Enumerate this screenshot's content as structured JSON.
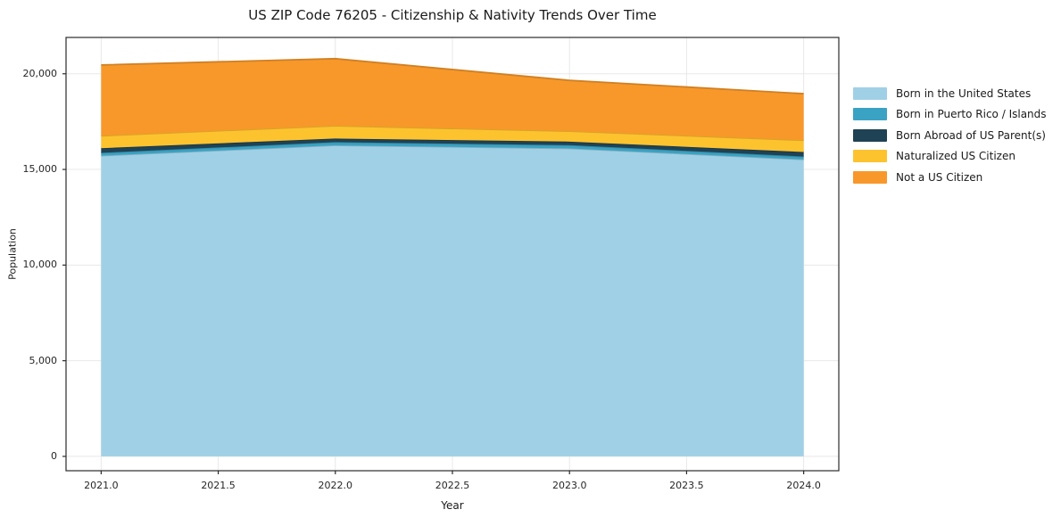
{
  "chart_data": {
    "type": "area",
    "stacked": true,
    "title": "US ZIP Code 76205 - Citizenship & Nativity Trends Over Time",
    "xlabel": "Year",
    "ylabel": "Population",
    "x": [
      2021,
      2022,
      2023,
      2024
    ],
    "series": [
      {
        "name": "Born in the United States",
        "color": "#a0d0e6",
        "values": [
          15720,
          16260,
          16100,
          15520
        ]
      },
      {
        "name": "Born in Puerto Rico / Islands",
        "color": "#3aa2c2",
        "values": [
          150,
          170,
          170,
          155
        ]
      },
      {
        "name": "Born Abroad of US Parent(s)",
        "color": "#1f4254",
        "values": [
          240,
          185,
          185,
          235
        ]
      },
      {
        "name": "Naturalized US Citizen",
        "color": "#fdc32f",
        "values": [
          650,
          665,
          545,
          615
        ]
      },
      {
        "name": "Not a US Citizen",
        "color": "#f8982a",
        "values": [
          3700,
          3510,
          2655,
          2435
        ]
      }
    ],
    "totals": [
      20460,
      20790,
      19655,
      18960
    ],
    "xlim": [
      2020.85,
      2024.15
    ],
    "ylim": [
      -750,
      21900
    ],
    "xticks": [
      2021.0,
      2021.5,
      2022.0,
      2022.5,
      2023.0,
      2023.5,
      2024.0
    ],
    "xtick_labels": [
      "2021.0",
      "2021.5",
      "2022.0",
      "2022.5",
      "2023.0",
      "2023.5",
      "2024.0"
    ],
    "yticks": [
      0,
      5000,
      10000,
      15000,
      20000
    ],
    "ytick_labels": [
      "0",
      "5,000",
      "10,000",
      "15,000",
      "20,000"
    ],
    "grid": true,
    "grid_color": "#e8e8e8",
    "spine_color": "#2b2b2b",
    "legend_position": "right outside"
  }
}
